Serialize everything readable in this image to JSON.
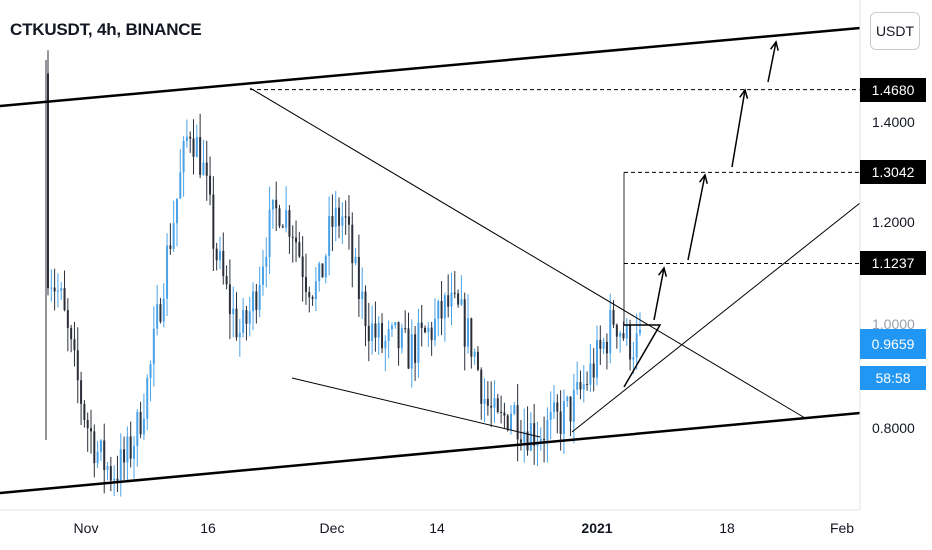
{
  "header": {
    "title": "CTKUSDT, 4h, BINANCE",
    "currency_button": "USDT"
  },
  "chart_data": {
    "type": "candlestick",
    "title": "CTKUSDT, 4h, BINANCE",
    "price_axis": {
      "unit": "USDT",
      "ticks": [
        "1.4000",
        "1.2000",
        "1.0000",
        "0.8000"
      ],
      "ylim": [
        0.62,
        1.72
      ]
    },
    "time_axis": {
      "ticks": [
        {
          "label": "Nov",
          "bold": false
        },
        {
          "label": "16",
          "bold": false
        },
        {
          "label": "Dec",
          "bold": false
        },
        {
          "label": "14",
          "bold": false
        },
        {
          "label": "2021",
          "bold": true
        },
        {
          "label": "18",
          "bold": false
        },
        {
          "label": "Feb",
          "bold": false
        }
      ]
    },
    "price_levels": [
      {
        "label": "1.4680",
        "value": 1.468
      },
      {
        "label": "1.3042",
        "value": 1.3042
      },
      {
        "label": "1.1237",
        "value": 1.1237
      }
    ],
    "current_price": {
      "label": "0.9659",
      "value": 0.9659,
      "countdown": "58:58"
    },
    "overlay_text": {
      "faded_tick": "1.0000"
    },
    "approx_path": [
      1.12,
      1.05,
      0.92,
      0.81,
      0.74,
      0.71,
      0.73,
      0.8,
      0.92,
      1.1,
      1.25,
      1.4,
      1.32,
      1.15,
      1.05,
      0.98,
      1.05,
      1.18,
      1.24,
      1.2,
      1.1,
      1.07,
      1.2,
      1.22,
      1.08,
      1.0,
      0.96,
      0.97,
      0.95,
      0.97,
      1.0,
      1.04,
      1.02,
      0.96,
      0.85,
      0.8,
      0.84,
      0.8,
      0.79,
      0.8,
      0.82,
      0.85,
      0.9,
      0.95,
      1.02,
      0.97,
      0.96
    ]
  }
}
